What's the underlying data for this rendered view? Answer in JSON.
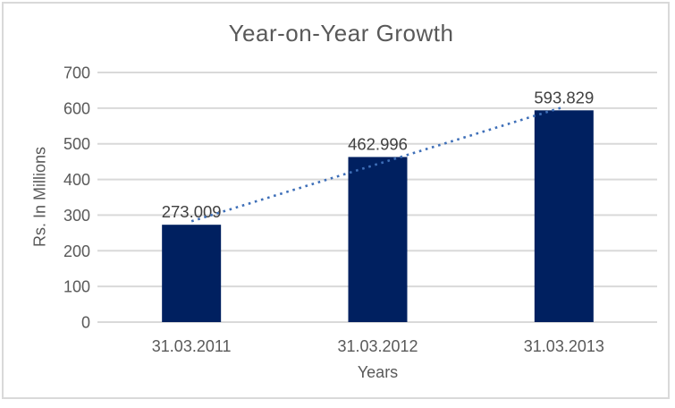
{
  "chart_data": {
    "type": "bar",
    "title": "Year-on-Year Growth",
    "categories": [
      "31.03.2011",
      "31.03.2012",
      "31.03.2013"
    ],
    "values": [
      273.009,
      462.996,
      593.829
    ],
    "data_labels": [
      "273.009",
      "462.996",
      "593.829"
    ],
    "xlabel": "Years",
    "ylabel": "Rs. In Millions",
    "ylim": [
      0,
      700
    ],
    "y_ticks": [
      0,
      100,
      200,
      300,
      400,
      500,
      600,
      700
    ],
    "grid": true,
    "legend": "none",
    "trendline": {
      "type": "linear",
      "style": "dotted",
      "color": "#3E6FB8"
    },
    "colors": {
      "bar": "#002060",
      "gridline": "#D9D9D9",
      "border": "#D9D9D9",
      "axis_text": "#595959",
      "title_text": "#595959",
      "data_label_text": "#404040",
      "background": "#FFFFFF"
    }
  }
}
